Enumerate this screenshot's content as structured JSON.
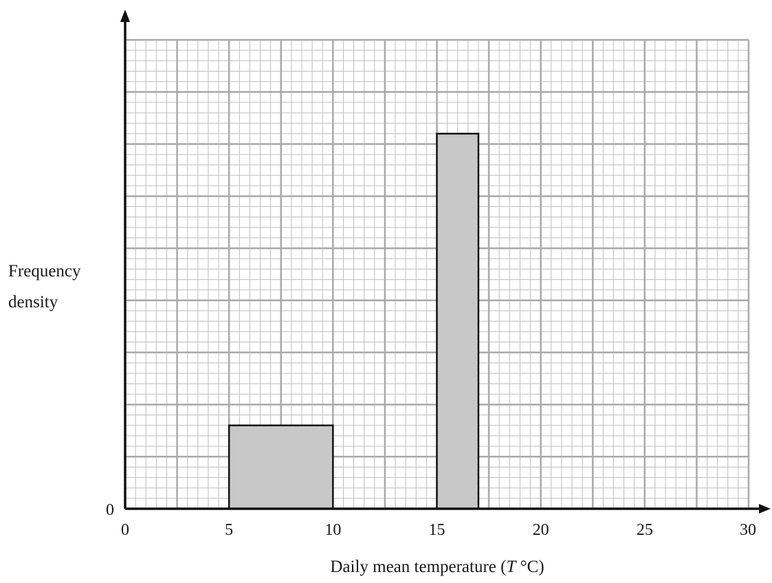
{
  "chart_data": {
    "type": "bar",
    "subtype": "histogram",
    "bars": [
      {
        "x_start": 5,
        "x_end": 10,
        "frequency_density": 1.6
      },
      {
        "x_start": 15,
        "x_end": 17,
        "frequency_density": 7.2
      }
    ],
    "x_ticks": [
      "0",
      "5",
      "10",
      "15",
      "20",
      "25",
      "30"
    ],
    "y_tick_labels": [
      "0"
    ],
    "xlabel_parts": {
      "before": "Daily mean temperature (",
      "italic": "T",
      "after": " °C)"
    },
    "ylabel_lines": [
      "Frequency",
      "density"
    ],
    "xlim": [
      0,
      30
    ],
    "ylim": [
      0,
      9
    ],
    "grid": true,
    "grid_major_x": 2.5,
    "grid_major_y": 1,
    "minor_per_major": 5
  }
}
